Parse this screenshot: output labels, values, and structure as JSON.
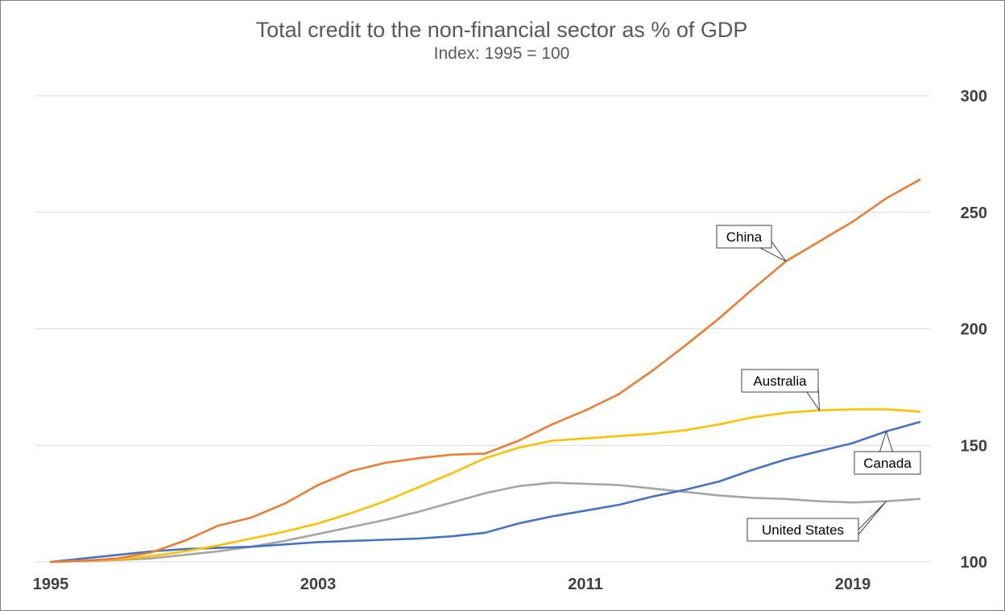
{
  "chart_data": {
    "type": "line",
    "title": "Total credit to the non-financial sector as % of GDP",
    "subtitle": "Index: 1995 = 100",
    "xlabel": "",
    "ylabel": "",
    "x": [
      1995,
      1996,
      1997,
      1998,
      1999,
      2000,
      2001,
      2002,
      2003,
      2004,
      2005,
      2006,
      2007,
      2008,
      2009,
      2010,
      2011,
      2012,
      2013,
      2014,
      2015,
      2016,
      2017,
      2018,
      2019,
      2020,
      2021
    ],
    "x_ticks": [
      "1995",
      "2003",
      "2011",
      "2019"
    ],
    "y_ticks": [
      "100",
      "150",
      "200",
      "250",
      "300"
    ],
    "ylim": [
      100,
      300
    ],
    "y_axis_side": "right",
    "grid": true,
    "colors": {
      "China": "#ed7d31",
      "Australia": "#ffc000",
      "United States": "#a5a5a5",
      "Canada": "#4472c4",
      "grid": "#d9d9d9"
    },
    "series": [
      {
        "name": "China",
        "values": [
          100,
          100.5,
          101.5,
          104,
          109,
          115.5,
          119,
          125,
          133,
          139,
          142.5,
          144.5,
          146,
          146.5,
          152,
          159,
          165,
          172,
          182,
          193,
          204.5,
          217,
          229,
          237.5,
          246,
          256,
          264
        ]
      },
      {
        "name": "Australia",
        "values": [
          100,
          100.5,
          101,
          102.5,
          104.5,
          107,
          110,
          113,
          116.5,
          121,
          126,
          132,
          138,
          144.5,
          149,
          152,
          153,
          154,
          155,
          156.5,
          159,
          162,
          164,
          165,
          165.5,
          165.5,
          164.5
        ]
      },
      {
        "name": "United States",
        "values": [
          100,
          100.3,
          100.8,
          101.5,
          103,
          104.5,
          106.5,
          109,
          112,
          115,
          118,
          121.5,
          125.5,
          129.5,
          132.5,
          134,
          133.5,
          133,
          131.5,
          130,
          128.5,
          127.5,
          127,
          126,
          125.5,
          126,
          127
        ]
      },
      {
        "name": "Canada",
        "values": [
          100,
          101.5,
          103,
          104.5,
          105.5,
          106,
          106.5,
          107.5,
          108.5,
          109,
          109.5,
          110,
          111,
          112.5,
          116.5,
          119.5,
          122,
          124.5,
          128,
          131,
          134.5,
          139.5,
          144,
          147.5,
          151,
          156,
          160
        ]
      }
    ],
    "annotations": [
      {
        "label": "China",
        "series": "China",
        "point_year": 2017
      },
      {
        "label": "Australia",
        "series": "Australia",
        "point_year": 2018
      },
      {
        "label": "Canada",
        "series": "Canada",
        "point_year": 2020
      },
      {
        "label": "United States",
        "series": "United States",
        "point_year": 2020
      }
    ]
  }
}
